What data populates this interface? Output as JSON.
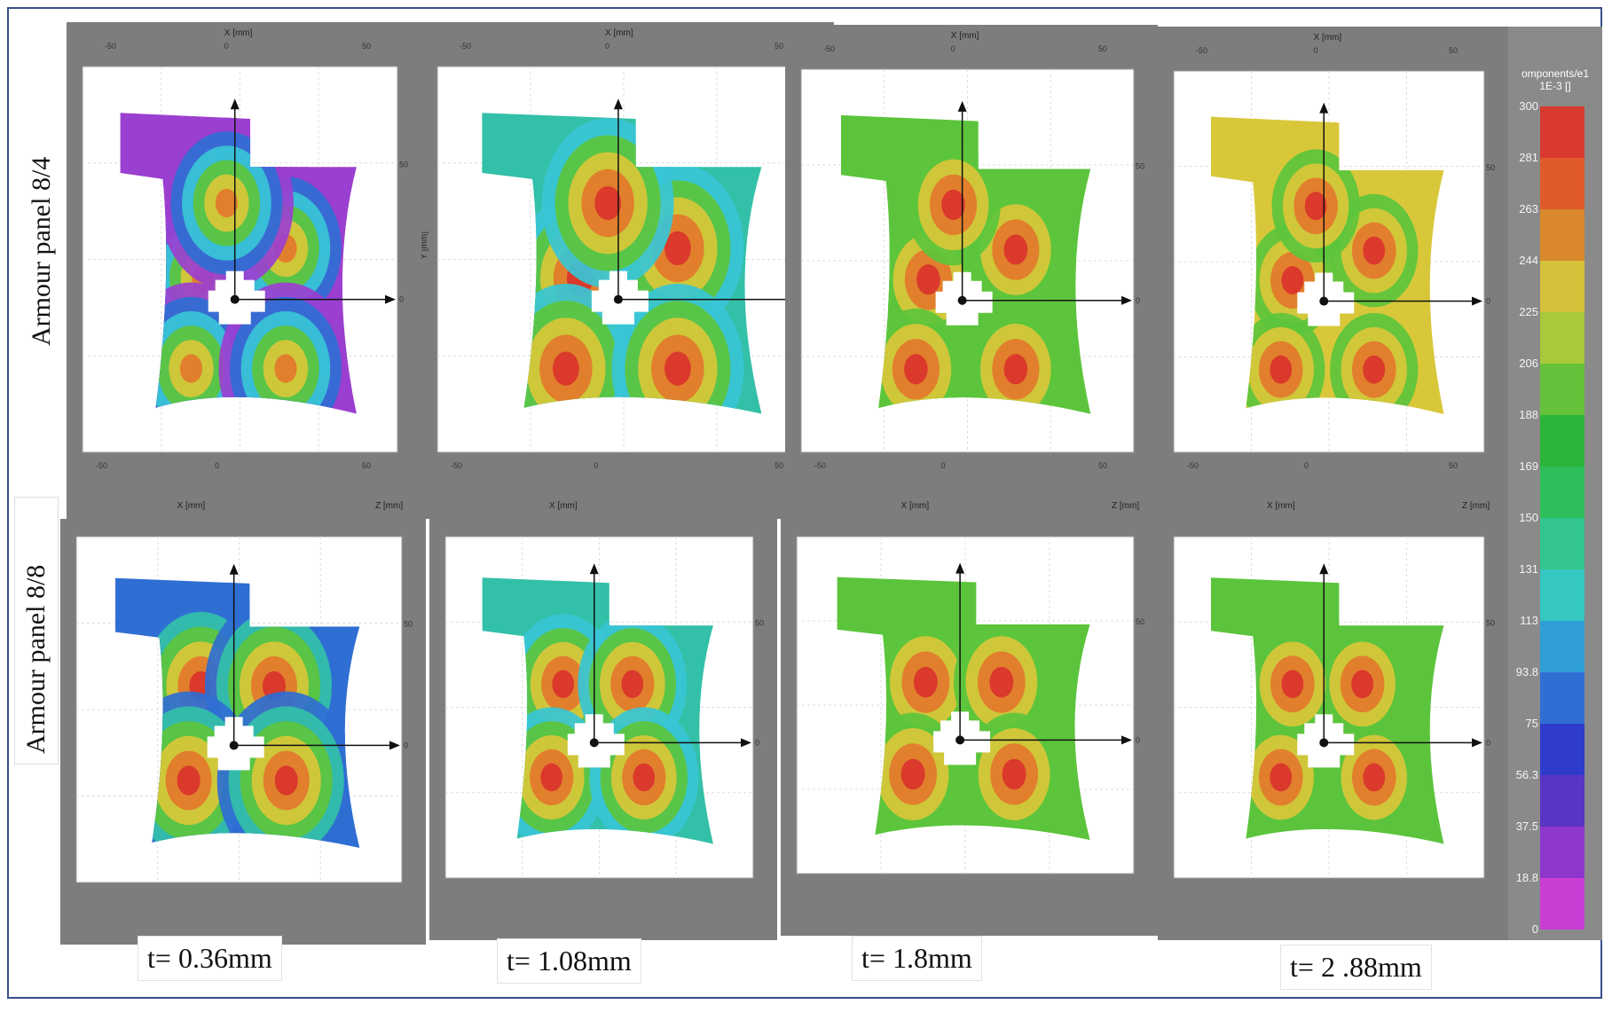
{
  "rows": [
    {
      "label": "Armour panel 8/4"
    },
    {
      "label": "Armour panel 8/8"
    }
  ],
  "time_labels": [
    "t= 0.36mm",
    "t= 1.08mm",
    "t= 1.8mm",
    "t= 2 .88mm"
  ],
  "axes": {
    "x_label": "X [mm]",
    "y_label": "Y [mm]",
    "z_label": "Z [mm]",
    "top_ticks": [
      "-50",
      "0",
      "50"
    ],
    "side_ticks": [
      "50",
      "0"
    ]
  },
  "colorbar": {
    "title_line1": "omponents/e1",
    "title_line2": "1E-3 []",
    "ticks": [
      "300",
      "281",
      "263",
      "244",
      "225",
      "206",
      "188",
      "169",
      "150",
      "131",
      "113",
      "93.8",
      "75",
      "56.3",
      "37.5",
      "18.8",
      "0"
    ],
    "colors": [
      "#d93a2f",
      "#e05a2a",
      "#d9882c",
      "#d6c23a",
      "#a9c93a",
      "#63c23a",
      "#2bb63a",
      "#2fbf5a",
      "#33c58f",
      "#35c7c2",
      "#2f9ed6",
      "#2f6fd3",
      "#2f3ccb",
      "#5a34c4",
      "#8f36cc",
      "#c93dd4"
    ]
  },
  "heatmap_palette": {
    "red": "#d9332b",
    "orange": "#e3782c",
    "yellow": "#d9c73a",
    "green": "#5cc43c",
    "teal": "#33c0a8",
    "cyan": "#38c6d6",
    "blue": "#2f6ed3",
    "indigo": "#3b3cc8",
    "purple": "#9b3fd0",
    "magenta": "#d43fd6"
  }
}
